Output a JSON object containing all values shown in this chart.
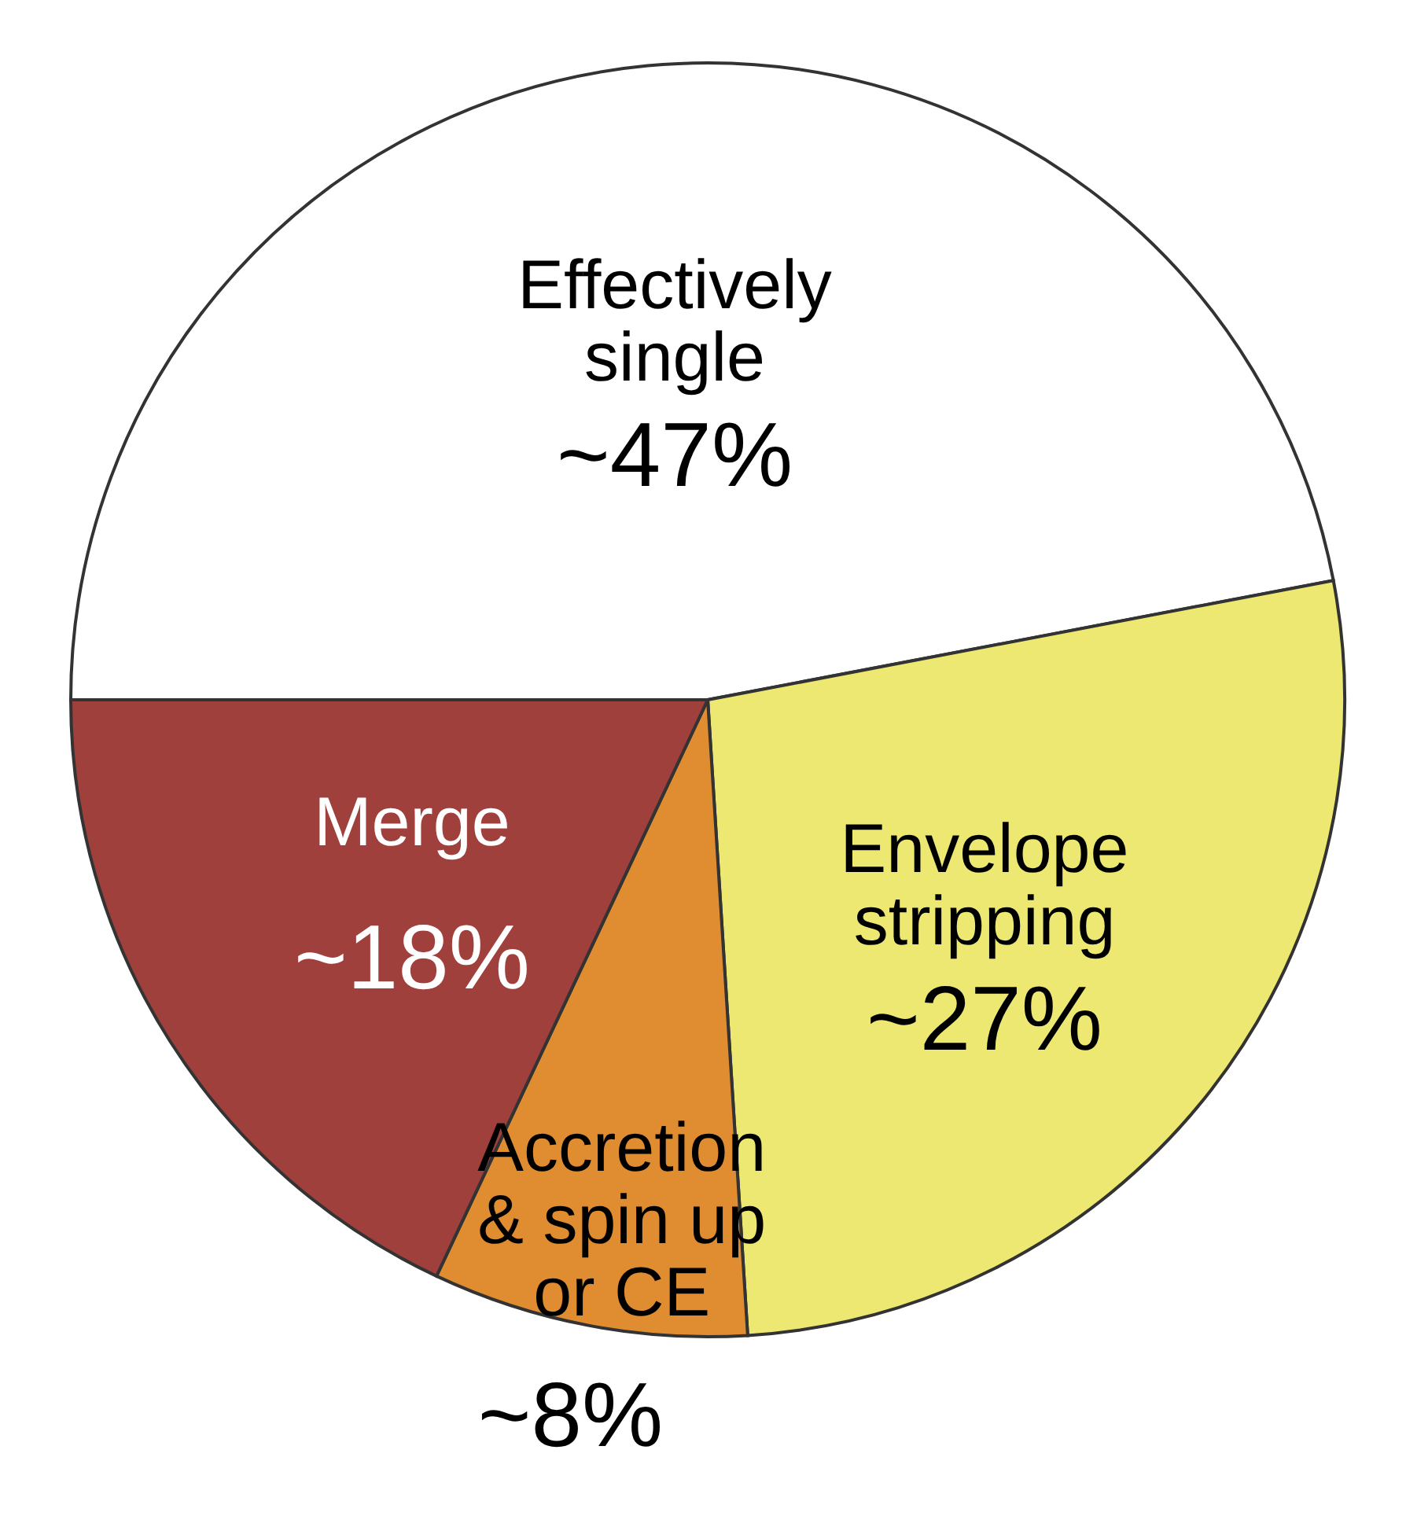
{
  "chart_data": {
    "type": "pie",
    "categories": [
      "Effectively\nsingle",
      "Envelope\nstripping",
      "Accretion\n& spin up\nor CE",
      "Merge"
    ],
    "values": [
      47,
      27,
      8,
      18
    ],
    "value_labels": [
      "~47%",
      "~27%",
      "~8%",
      "~18%"
    ],
    "colors": [
      "#ffffff",
      "#ede872",
      "#e08c30",
      "#a0403c"
    ]
  }
}
